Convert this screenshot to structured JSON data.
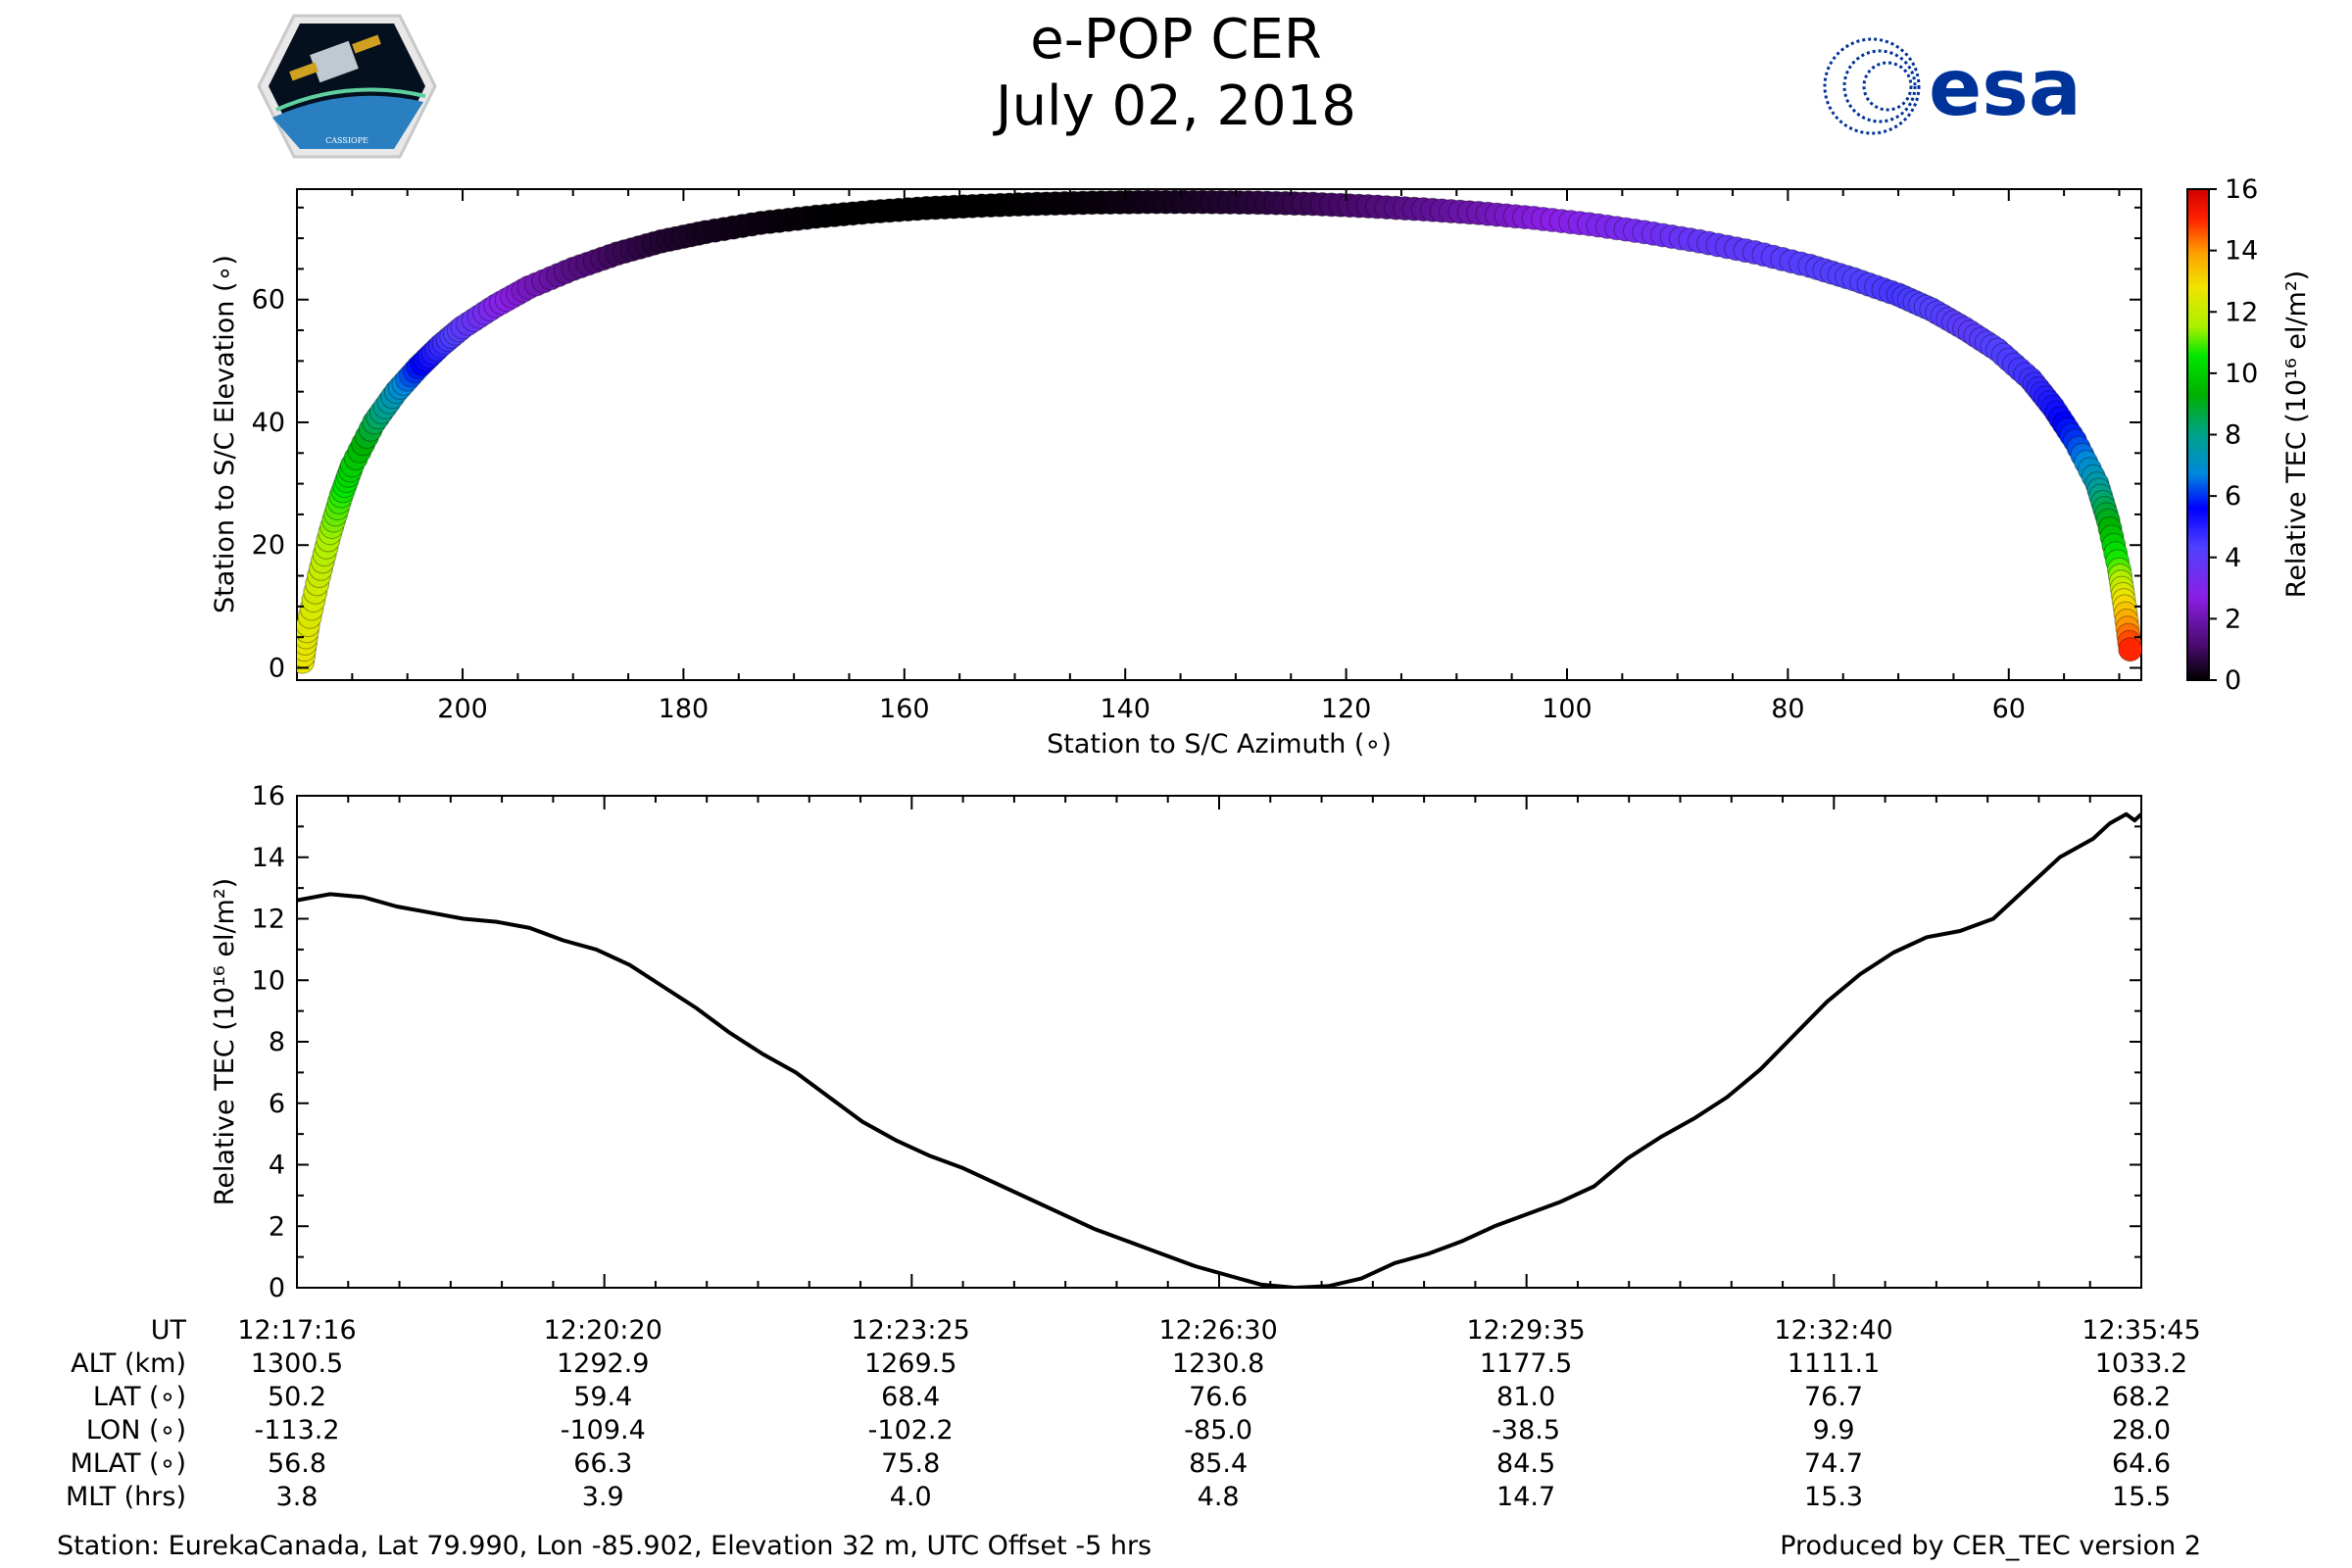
{
  "title": {
    "line1": "e-POP CER",
    "line2": "July 02, 2018"
  },
  "logos": {
    "left": "CASSIOPE",
    "right": "esa"
  },
  "colors": {
    "esa_blue": "#003399"
  },
  "chart_data": [
    {
      "type": "scatter",
      "name": "elevation-vs-azimuth",
      "xlabel": "Station to S/C Azimuth (∘)",
      "ylabel": "Station to S/C Elevation (∘)",
      "xlim": [
        215,
        48
      ],
      "ylim": [
        -2,
        78
      ],
      "xticks": [
        200,
        180,
        160,
        140,
        120,
        100,
        80,
        60
      ],
      "yticks": [
        0,
        20,
        40,
        60
      ],
      "colorbar": {
        "label": "Relative TEC (10¹⁶ el/m²)",
        "ticks": [
          0,
          2,
          4,
          6,
          8,
          10,
          12,
          14,
          16
        ],
        "range": [
          0,
          16
        ],
        "colormap": "nipy_spectral"
      },
      "series": [
        {
          "name": "pass",
          "azimuth": [
            214.5,
            214,
            213,
            212,
            211,
            210,
            208,
            206,
            204,
            202,
            200,
            197,
            194,
            190,
            186,
            182,
            178,
            173,
            168,
            163,
            158,
            153,
            148,
            143,
            138,
            133,
            128,
            123,
            118,
            113,
            108,
            103,
            98,
            93,
            88,
            83,
            78,
            74,
            70,
            67,
            64,
            61,
            58,
            56,
            54,
            52,
            51,
            50,
            49.5,
            49
          ],
          "elevation": [
            1,
            7,
            15,
            22,
            28,
            33,
            40,
            45,
            49,
            52.5,
            55.5,
            59,
            62,
            65,
            67.5,
            69.5,
            71,
            72.5,
            73.5,
            74.3,
            74.9,
            75.3,
            75.6,
            75.8,
            75.9,
            75.9,
            75.8,
            75.6,
            75.2,
            74.7,
            74.1,
            73.3,
            72.3,
            71,
            69.5,
            67.7,
            65.5,
            63.3,
            60.8,
            58.4,
            55.3,
            51.8,
            47,
            42.5,
            37,
            30,
            24,
            16,
            10,
            3
          ],
          "tec": [
            12.7,
            12.5,
            12.1,
            11.5,
            10.8,
            10.0,
            8.6,
            7.2,
            5.8,
            4.8,
            4.0,
            3.0,
            2.2,
            1.4,
            0.9,
            0.5,
            0.3,
            0.15,
            0.05,
            0.0,
            0.0,
            0.0,
            0.05,
            0.1,
            0.25,
            0.4,
            0.6,
            0.9,
            1.2,
            1.6,
            2.0,
            2.6,
            3.0,
            3.4,
            3.8,
            4.0,
            4.2,
            4.3,
            4.5,
            4.3,
            4.0,
            4.3,
            4.6,
            5.2,
            6.0,
            7.5,
            9.0,
            11.0,
            13.0,
            15.0
          ]
        }
      ]
    },
    {
      "type": "line",
      "name": "tec-vs-time",
      "ylabel": "Relative TEC (10¹⁶ el/m²)",
      "ylim": [
        0,
        16
      ],
      "yticks": [
        0,
        2,
        4,
        6,
        8,
        10,
        12,
        14,
        16
      ],
      "xlim": [
        0,
        1109
      ],
      "x_tick_seconds": [
        0,
        184,
        369,
        554,
        739,
        924,
        1109
      ],
      "x_tick_labels": [
        "12:17:16",
        "12:20:20",
        "12:23:25",
        "12:26:30",
        "12:29:35",
        "12:32:40",
        "12:35:45"
      ],
      "series": [
        {
          "name": "Relative TEC",
          "t": [
            0,
            20,
            40,
            60,
            80,
            100,
            120,
            140,
            160,
            180,
            200,
            220,
            240,
            260,
            280,
            300,
            320,
            340,
            360,
            380,
            400,
            420,
            440,
            460,
            480,
            500,
            520,
            540,
            560,
            580,
            600,
            620,
            640,
            660,
            680,
            700,
            720,
            740,
            760,
            780,
            800,
            820,
            840,
            860,
            880,
            900,
            920,
            940,
            960,
            980,
            1000,
            1020,
            1040,
            1060,
            1080,
            1090,
            1100,
            1105,
            1109
          ],
          "values": [
            12.6,
            12.8,
            12.7,
            12.4,
            12.2,
            12.0,
            11.9,
            11.7,
            11.3,
            11.0,
            10.5,
            9.8,
            9.1,
            8.3,
            7.6,
            7.0,
            6.2,
            5.4,
            4.8,
            4.3,
            3.9,
            3.4,
            2.9,
            2.4,
            1.9,
            1.5,
            1.1,
            0.7,
            0.4,
            0.1,
            0.0,
            0.05,
            0.3,
            0.8,
            1.1,
            1.5,
            2.0,
            2.4,
            2.8,
            3.3,
            4.2,
            4.9,
            5.5,
            6.2,
            7.1,
            8.2,
            9.3,
            10.2,
            10.9,
            11.4,
            11.6,
            12.0,
            13.0,
            14.0,
            14.6,
            15.1,
            15.4,
            15.2,
            15.4
          ]
        }
      ]
    }
  ],
  "info_table": {
    "row_labels": [
      "UT",
      "ALT (km)",
      "LAT (∘)",
      "LON (∘)",
      "MLAT (∘)",
      "MLT (hrs)"
    ],
    "columns": [
      [
        "12:17:16",
        "1300.5",
        "50.2",
        "-113.2",
        "56.8",
        "3.8"
      ],
      [
        "12:20:20",
        "1292.9",
        "59.4",
        "-109.4",
        "66.3",
        "3.9"
      ],
      [
        "12:23:25",
        "1269.5",
        "68.4",
        "-102.2",
        "75.8",
        "4.0"
      ],
      [
        "12:26:30",
        "1230.8",
        "76.6",
        "-85.0",
        "85.4",
        "4.8"
      ],
      [
        "12:29:35",
        "1177.5",
        "81.0",
        "-38.5",
        "84.5",
        "14.7"
      ],
      [
        "12:32:40",
        "1111.1",
        "76.7",
        "9.9",
        "74.7",
        "15.3"
      ],
      [
        "12:35:45",
        "1033.2",
        "68.2",
        "28.0",
        "64.6",
        "15.5"
      ]
    ]
  },
  "footer": {
    "station": "Station: EurekaCanada, Lat 79.990, Lon -85.902, Elevation 32 m, UTC Offset -5 hrs",
    "produced": "Produced by CER_TEC version 2"
  }
}
